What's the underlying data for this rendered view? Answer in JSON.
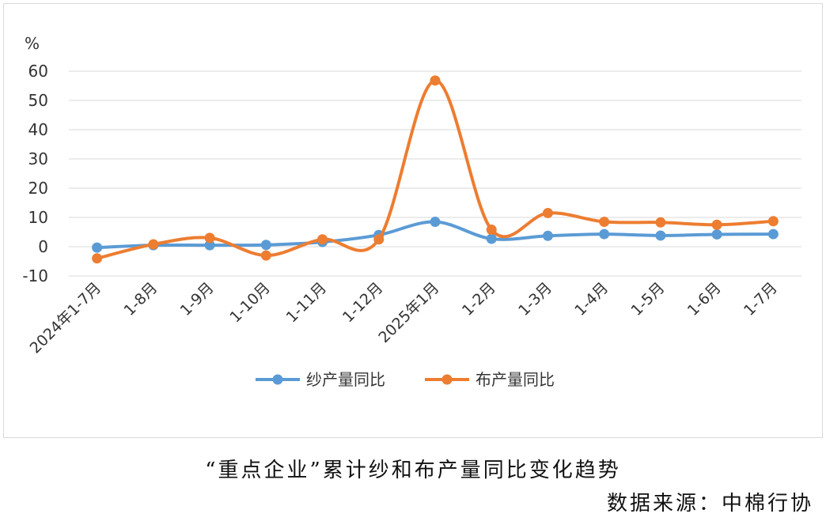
{
  "chart_data": {
    "type": "line",
    "y_unit": "%",
    "ylim": [
      -10,
      60
    ],
    "yticks": [
      -10,
      0,
      10,
      20,
      30,
      40,
      50,
      60
    ],
    "negative_tick_color": "#e00000",
    "grid": true,
    "smooth": true,
    "legend_position": "bottom",
    "categories": [
      "2024年1-7月",
      "1-8月",
      "1-9月",
      "1-10月",
      "1-11月",
      "1-12月",
      "2025年1月",
      "1-2月",
      "1-3月",
      "1-4月",
      "1-5月",
      "1-6月",
      "1-7月"
    ],
    "series": [
      {
        "name": "纱产量同比",
        "color": "#5b9bd5",
        "values": [
          -0.3,
          0.5,
          0.5,
          0.6,
          1.6,
          4.0,
          8.5,
          2.7,
          3.7,
          4.3,
          3.8,
          4.2,
          4.3
        ]
      },
      {
        "name": "布产量同比",
        "color": "#ed7d31",
        "values": [
          -4.0,
          0.8,
          3.0,
          -3.0,
          2.5,
          2.5,
          56.8,
          5.8,
          11.5,
          8.5,
          8.3,
          7.5,
          8.7
        ]
      }
    ]
  },
  "caption": "“重点企业”累计纱和布产量同比变化趋势",
  "source": "数据来源：中棉行协"
}
